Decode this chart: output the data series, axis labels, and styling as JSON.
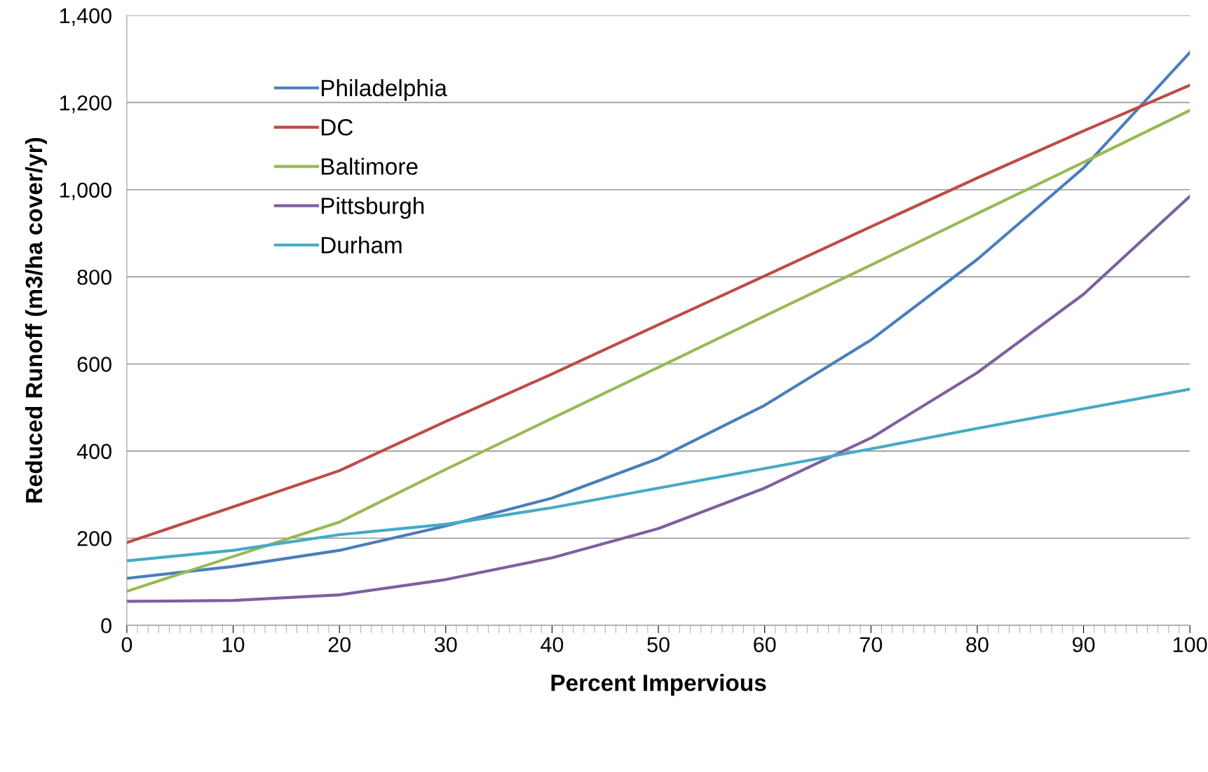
{
  "chart_data": {
    "type": "line",
    "xlabel": "Percent Impervious",
    "ylabel": "Reduced Runoff (m3/ha cover/yr)",
    "x": [
      0,
      10,
      20,
      30,
      40,
      50,
      60,
      70,
      80,
      90,
      100
    ],
    "series": [
      {
        "name": "Philadelphia",
        "color": "#4a7ebb",
        "values": [
          108,
          135,
          172,
          228,
          292,
          383,
          505,
          655,
          840,
          1050,
          1315
        ]
      },
      {
        "name": "DC",
        "color": "#be4b48",
        "values": [
          190,
          272,
          355,
          468,
          577,
          690,
          802,
          915,
          1027,
          1135,
          1240
        ]
      },
      {
        "name": "Baltimore",
        "color": "#98b954",
        "values": [
          78,
          158,
          237,
          358,
          475,
          592,
          710,
          827,
          945,
          1063,
          1182
        ]
      },
      {
        "name": "Pittsburgh",
        "color": "#7d60a0",
        "values": [
          55,
          57,
          70,
          105,
          155,
          222,
          315,
          430,
          580,
          760,
          985
        ]
      },
      {
        "name": "Durham",
        "color": "#46aac5",
        "values": [
          148,
          172,
          208,
          232,
          270,
          315,
          360,
          405,
          452,
          497,
          542
        ]
      }
    ],
    "xlim": [
      0,
      100
    ],
    "xticks": [
      0,
      10,
      20,
      30,
      40,
      50,
      60,
      70,
      80,
      90,
      100
    ],
    "ylim": [
      0,
      1400
    ],
    "yticks": [
      {
        "value": 0,
        "label": "0"
      },
      {
        "value": 200,
        "label": "200"
      },
      {
        "value": 400,
        "label": "400"
      },
      {
        "value": 600,
        "label": "600"
      },
      {
        "value": 800,
        "label": "800"
      },
      {
        "value": 1000,
        "label": "1,000"
      },
      {
        "value": 1200,
        "label": "1,200"
      },
      {
        "value": 1400,
        "label": "1,400"
      }
    ],
    "grid": "y",
    "legend": "top left",
    "marker": "none",
    "line_style": "solid"
  }
}
